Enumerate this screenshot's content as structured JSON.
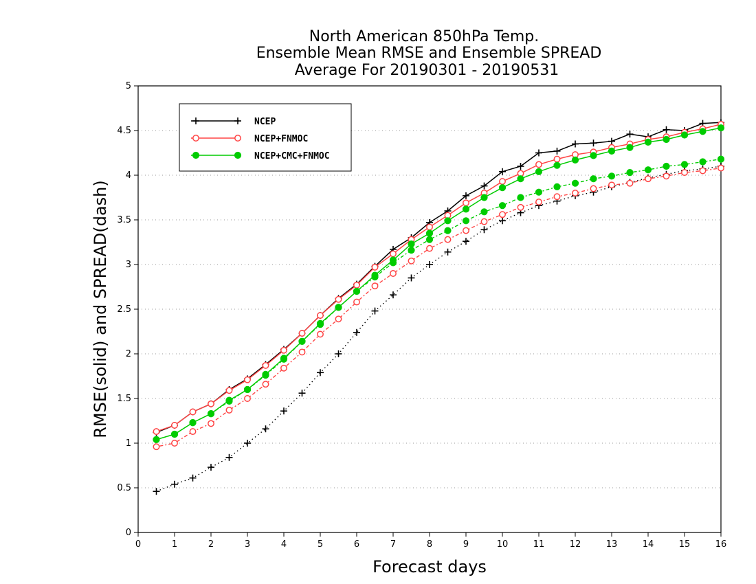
{
  "chart_data": {
    "type": "line",
    "title_lines": [
      "North American 850hPa Temp.",
      "Ensemble Mean RMSE and Ensemble SPREAD",
      "Average For 20190301 - 20190531"
    ],
    "xlabel": "Forecast days",
    "ylabel": "RMSE(solid) and SPREAD(dash)",
    "xlim": [
      0,
      16
    ],
    "ylim": [
      0,
      5
    ],
    "x_ticks": [
      "0",
      "1",
      "2",
      "3",
      "4",
      "5",
      "6",
      "7",
      "8",
      "9",
      "10",
      "11",
      "12",
      "13",
      "14",
      "15",
      "16"
    ],
    "y_ticks": [
      "0",
      "0.5",
      "1",
      "1.5",
      "2",
      "2.5",
      "3",
      "3.5",
      "4",
      "4.5",
      "5"
    ],
    "grid": "horizontal dotted",
    "legend_position": "top-left",
    "x": [
      0.5,
      1,
      1.5,
      2,
      2.5,
      3,
      3.5,
      4,
      4.5,
      5,
      5.5,
      6,
      6.5,
      7,
      7.5,
      8,
      8.5,
      9,
      9.5,
      10,
      10.5,
      11,
      11.5,
      12,
      12.5,
      13,
      13.5,
      14,
      14.5,
      15,
      15.5,
      16
    ],
    "series": [
      {
        "name": "NCEP",
        "color": "#000000",
        "marker": "plus",
        "rmse": [
          1.12,
          1.2,
          1.35,
          1.44,
          1.6,
          1.72,
          1.88,
          2.05,
          2.23,
          2.43,
          2.62,
          2.78,
          2.98,
          3.17,
          3.3,
          3.47,
          3.6,
          3.77,
          3.88,
          4.04,
          4.1,
          4.25,
          4.27,
          4.35,
          4.36,
          4.38,
          4.46,
          4.43,
          4.51,
          4.5,
          4.58,
          4.59
        ],
        "spread": [
          0.46,
          0.54,
          0.61,
          0.73,
          0.84,
          1.0,
          1.16,
          1.36,
          1.56,
          1.79,
          2.0,
          2.24,
          2.48,
          2.66,
          2.85,
          3.0,
          3.14,
          3.26,
          3.39,
          3.49,
          3.58,
          3.66,
          3.71,
          3.77,
          3.81,
          3.87,
          3.92,
          3.97,
          4.01,
          4.05,
          4.07,
          4.1
        ]
      },
      {
        "name": "NCEP+FNMOC",
        "color": "#ff4444",
        "marker": "open-circle",
        "rmse": [
          1.13,
          1.2,
          1.35,
          1.44,
          1.59,
          1.71,
          1.87,
          2.04,
          2.23,
          2.43,
          2.61,
          2.77,
          2.97,
          3.12,
          3.28,
          3.42,
          3.55,
          3.69,
          3.8,
          3.93,
          4.02,
          4.12,
          4.18,
          4.23,
          4.26,
          4.31,
          4.35,
          4.4,
          4.43,
          4.48,
          4.52,
          4.57
        ],
        "spread": [
          0.96,
          1.0,
          1.13,
          1.22,
          1.37,
          1.5,
          1.66,
          1.84,
          2.02,
          2.22,
          2.39,
          2.58,
          2.76,
          2.9,
          3.04,
          3.18,
          3.28,
          3.38,
          3.48,
          3.56,
          3.64,
          3.7,
          3.76,
          3.8,
          3.85,
          3.89,
          3.91,
          3.96,
          3.99,
          4.03,
          4.05,
          4.08
        ]
      },
      {
        "name": "NCEP+CMC+FNMOC",
        "color": "#00cc00",
        "marker": "filled-circle",
        "rmse": [
          1.04,
          1.1,
          1.23,
          1.33,
          1.48,
          1.6,
          1.77,
          1.95,
          2.14,
          2.34,
          2.52,
          2.7,
          2.88,
          3.05,
          3.23,
          3.35,
          3.49,
          3.62,
          3.75,
          3.86,
          3.96,
          4.04,
          4.11,
          4.17,
          4.22,
          4.27,
          4.31,
          4.37,
          4.4,
          4.45,
          4.49,
          4.53
        ],
        "spread": [
          1.04,
          1.1,
          1.23,
          1.33,
          1.47,
          1.6,
          1.76,
          1.94,
          2.14,
          2.33,
          2.52,
          2.7,
          2.86,
          3.02,
          3.16,
          3.28,
          3.38,
          3.49,
          3.59,
          3.66,
          3.75,
          3.81,
          3.87,
          3.91,
          3.96,
          3.99,
          4.03,
          4.06,
          4.1,
          4.12,
          4.15,
          4.18
        ]
      }
    ]
  }
}
